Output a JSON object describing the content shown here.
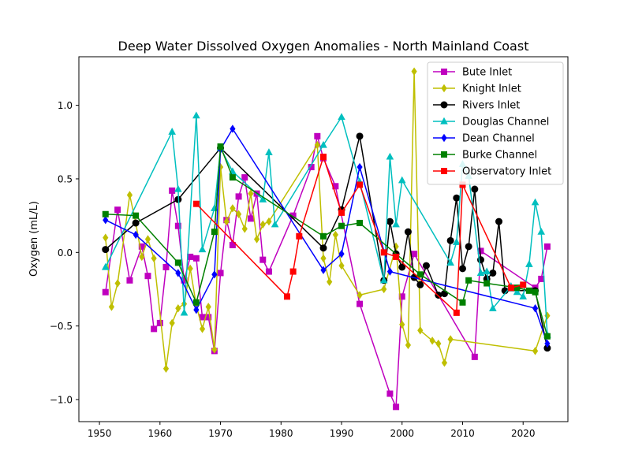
{
  "chart_data": {
    "type": "line",
    "title": "Deep Water Dissolved Oxygen Anomalies - North Mainland Coast",
    "xlabel": "",
    "ylabel": "Oxygen (mL/L)",
    "xlim": [
      1946.6,
      2027.4
    ],
    "ylim": [
      -1.15,
      1.33
    ],
    "x_ticks": [
      1950,
      1960,
      1970,
      1980,
      1990,
      2000,
      2010,
      2020
    ],
    "y_ticks": [
      -1.0,
      -0.5,
      0.0,
      0.5,
      1.0
    ],
    "x_tick_labels": [
      "1950",
      "1960",
      "1970",
      "1980",
      "1990",
      "2000",
      "2010",
      "2020"
    ],
    "y_tick_labels": [
      "−1.0",
      "−0.5",
      "0.0",
      "0.5",
      "1.0"
    ],
    "grid": false,
    "legend_position": "top-right",
    "series": [
      {
        "name": "Bute Inlet",
        "color": "#bf00bf",
        "marker": "square",
        "x": [
          1951,
          1953,
          1955,
          1957,
          1958,
          1959,
          1960,
          1961,
          1962,
          1963,
          1964,
          1965,
          1966,
          1967,
          1968,
          1969,
          1970,
          1971,
          1972,
          1973,
          1974,
          1975,
          1976,
          1977,
          1978,
          1982,
          1985,
          1986,
          1987,
          1989,
          1993,
          1998,
          1999,
          2000,
          2002,
          2012,
          2013,
          2022,
          2023,
          2024
        ],
        "y": [
          -0.27,
          0.29,
          -0.19,
          0.04,
          -0.16,
          -0.52,
          -0.48,
          -0.1,
          0.42,
          0.18,
          -0.19,
          -0.03,
          -0.04,
          -0.44,
          -0.44,
          -0.67,
          -0.14,
          0.22,
          0.05,
          0.38,
          0.51,
          0.23,
          0.4,
          -0.05,
          -0.13,
          0.25,
          0.58,
          0.79,
          0.64,
          0.45,
          -0.35,
          -0.96,
          -1.05,
          -0.3,
          -0.01,
          -0.71,
          0.01,
          -0.24,
          -0.18,
          0.04
        ]
      },
      {
        "name": "Knight Inlet",
        "color": "#bfbf00",
        "marker": "diamond",
        "x": [
          1951,
          1952,
          1953,
          1955,
          1956,
          1957,
          1958,
          1959,
          1961,
          1962,
          1963,
          1964,
          1965,
          1966,
          1967,
          1968,
          1969,
          1970,
          1971,
          1972,
          1973,
          1974,
          1975,
          1976,
          1977,
          1978,
          1986,
          1987,
          1988,
          1989,
          1990,
          1993,
          1997,
          1999,
          2000,
          2001,
          2002,
          2003,
          2005,
          2006,
          2007,
          2008,
          2022,
          2024
        ],
        "y": [
          0.1,
          -0.37,
          -0.21,
          0.39,
          0.2,
          -0.03,
          0.09,
          -0.04,
          -0.79,
          -0.48,
          -0.38,
          -0.35,
          -0.11,
          -0.36,
          -0.52,
          -0.37,
          -0.66,
          0.58,
          0.21,
          0.3,
          0.26,
          0.16,
          0.4,
          0.09,
          0.19,
          0.21,
          0.73,
          -0.04,
          -0.2,
          0.12,
          -0.09,
          -0.29,
          -0.25,
          0.04,
          -0.49,
          -0.63,
          1.23,
          -0.53,
          -0.6,
          -0.62,
          -0.75,
          -0.59,
          -0.67,
          -0.43
        ]
      },
      {
        "name": "Rivers Inlet",
        "color": "#000000",
        "marker": "circle",
        "x": [
          1951,
          1956,
          1963,
          1970,
          1987,
          1990,
          1993,
          1997,
          1998,
          1999,
          2000,
          2001,
          2002,
          2003,
          2004,
          2006,
          2007,
          2008,
          2009,
          2010,
          2011,
          2012,
          2013,
          2014,
          2015,
          2016,
          2017,
          2022,
          2024
        ],
        "y": [
          0.02,
          0.2,
          0.36,
          0.71,
          0.03,
          0.29,
          0.79,
          -0.19,
          0.21,
          -0.01,
          -0.1,
          0.14,
          -0.17,
          -0.22,
          -0.09,
          -0.29,
          -0.28,
          0.08,
          0.37,
          -0.11,
          0.04,
          0.43,
          -0.05,
          -0.18,
          -0.14,
          0.21,
          -0.26,
          -0.26,
          -0.65
        ]
      },
      {
        "name": "Douglas Channel",
        "color": "#00bfbf",
        "marker": "triangle",
        "x": [
          1951,
          1962,
          1963,
          1964,
          1966,
          1967,
          1969,
          1970,
          1972,
          1977,
          1978,
          1979,
          1987,
          1990,
          1993,
          1997,
          1998,
          1999,
          2000,
          2008,
          2009,
          2010,
          2011,
          2013,
          2014,
          2015,
          2018,
          2019,
          2020,
          2021,
          2022,
          2023,
          2024
        ],
        "y": [
          -0.1,
          0.82,
          0.43,
          -0.41,
          0.93,
          0.02,
          0.3,
          0.71,
          0.55,
          0.36,
          0.68,
          0.19,
          0.73,
          0.92,
          0.48,
          -0.19,
          0.65,
          0.19,
          0.49,
          -0.07,
          0.07,
          0.6,
          0.52,
          -0.14,
          -0.13,
          -0.38,
          -0.23,
          -0.27,
          -0.3,
          -0.08,
          0.34,
          0.14,
          -0.56
        ]
      },
      {
        "name": "Dean Channel",
        "color": "#0000ff",
        "marker": "diamond",
        "x": [
          1951,
          1956,
          1963,
          1966,
          1969,
          1970,
          1972,
          1987,
          1990,
          1993,
          1998,
          2022,
          2024
        ],
        "y": [
          0.22,
          0.12,
          -0.14,
          -0.39,
          -0.15,
          0.7,
          0.84,
          -0.12,
          -0.01,
          0.58,
          -0.13,
          -0.38,
          -0.62
        ]
      },
      {
        "name": "Burke Channel",
        "color": "#008000",
        "marker": "square",
        "x": [
          1951,
          1956,
          1963,
          1966,
          1969,
          1970,
          1972,
          1987,
          1990,
          1993,
          2003,
          2010,
          2011,
          2014,
          2019,
          2021,
          2022,
          2024
        ],
        "y": [
          0.26,
          0.25,
          -0.07,
          -0.34,
          0.14,
          0.72,
          0.51,
          0.11,
          0.18,
          0.2,
          -0.15,
          -0.34,
          -0.19,
          -0.21,
          -0.24,
          -0.26,
          -0.27,
          -0.57
        ]
      },
      {
        "name": "Observatory Inlet",
        "color": "#ff0000",
        "marker": "square",
        "x": [
          1966,
          1981,
          1982,
          1983,
          1987,
          1990,
          1993,
          1997,
          1999,
          2009,
          2010,
          2018,
          2020
        ],
        "y": [
          0.33,
          -0.3,
          -0.13,
          0.11,
          0.65,
          0.27,
          0.46,
          0.0,
          -0.03,
          -0.41,
          0.46,
          -0.24,
          -0.22
        ]
      }
    ]
  }
}
